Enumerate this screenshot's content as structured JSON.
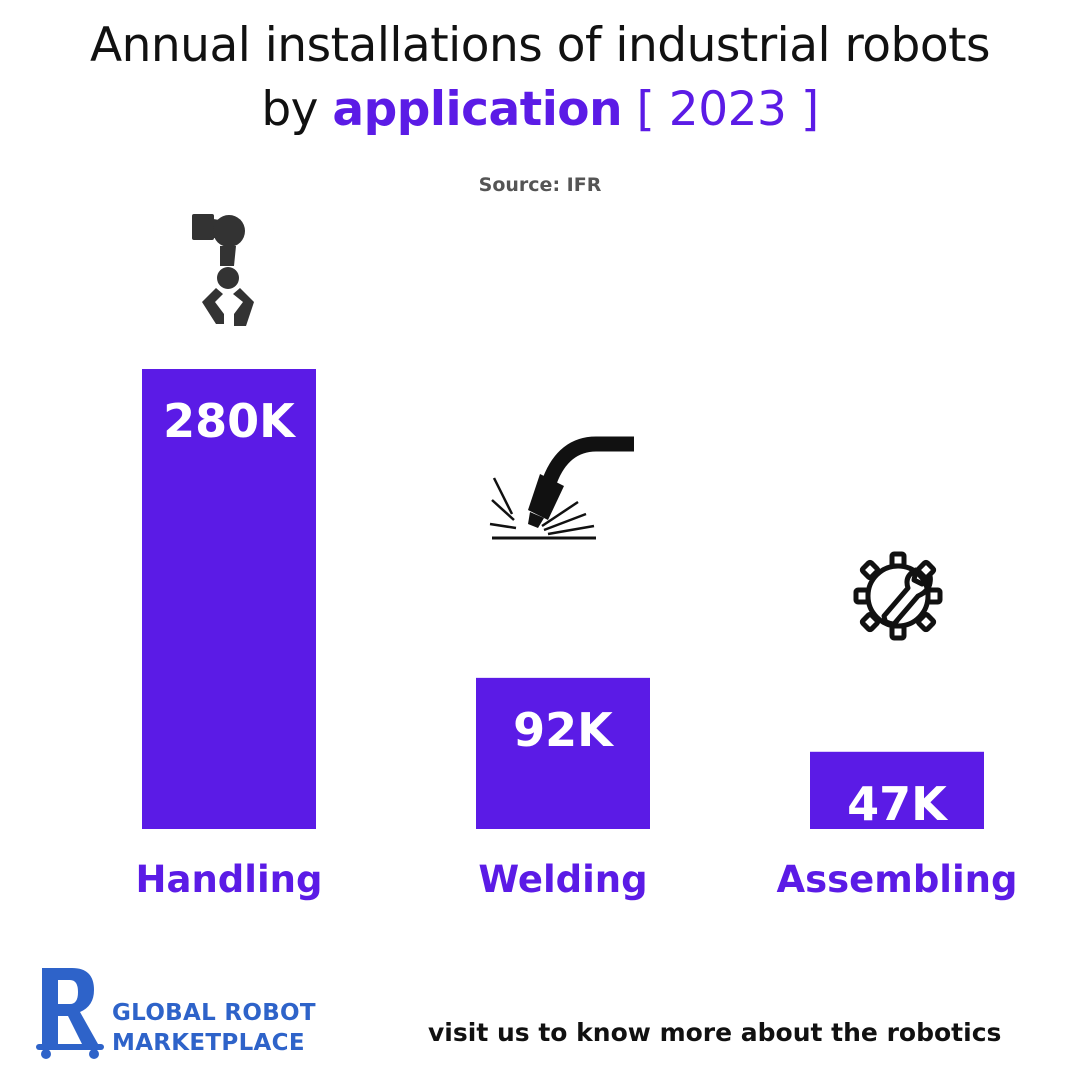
{
  "header": {
    "title_line1": "Annual installations of industrial robots",
    "title_by": "by",
    "title_accent": "application",
    "title_year": "[ 2023 ]",
    "source": "Source: IFR"
  },
  "chart_data": {
    "type": "bar",
    "title": "Annual installations of industrial robots by application [ 2023 ]",
    "categories": [
      "Handling",
      "Welding",
      "Assembling"
    ],
    "values": [
      280000,
      92000,
      47000
    ],
    "value_labels": [
      "280K",
      "92K",
      "47K"
    ],
    "category_icons": [
      "robotic-arm-gripper-icon",
      "welding-torch-icon",
      "gear-wrench-icon"
    ],
    "xlabel": "",
    "ylabel": "",
    "grid": false,
    "legend": "none",
    "colors": {
      "bar": "#5b1be6",
      "label": "#5b1be6",
      "value_text": "#ffffff"
    }
  },
  "footer": {
    "brand_line1": "GLOBAL ROBOT",
    "brand_line2": "MARKETPLACE",
    "cta": "visit us to know more about the robotics",
    "brand_color": "#2e63c9",
    "logo_icon": "robot-marketplace-logo-icon"
  }
}
